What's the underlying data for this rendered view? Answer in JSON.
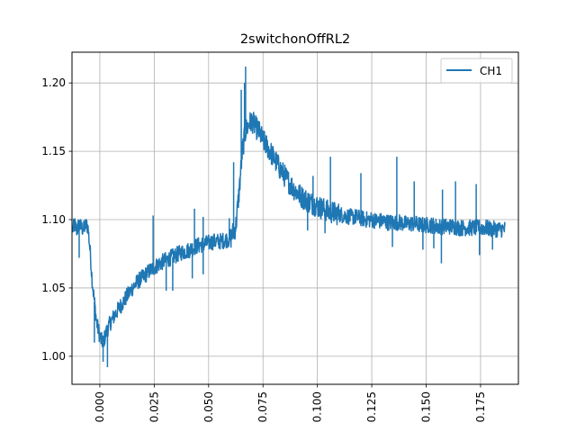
{
  "chart_data": {
    "type": "line",
    "title": "2switchonOffRL2",
    "xlabel": "",
    "ylabel": "",
    "xlim": [
      -0.0128,
      0.1924
    ],
    "ylim": [
      0.9795,
      1.2225
    ],
    "xticks": [
      0.0,
      0.025,
      0.05,
      0.075,
      0.1,
      0.125,
      0.15,
      0.175
    ],
    "xtick_labels": [
      "0.000",
      "0.025",
      "0.050",
      "0.075",
      "0.100",
      "0.125",
      "0.150",
      "0.175"
    ],
    "yticks": [
      1.0,
      1.05,
      1.1,
      1.15,
      1.2
    ],
    "ytick_labels": [
      "1.00",
      "1.05",
      "1.10",
      "1.15",
      "1.20"
    ],
    "grid": true,
    "legend": {
      "position": "top-right",
      "entries": [
        "CH1"
      ]
    },
    "color": "#1f77b4",
    "series": [
      {
        "name": "CH1",
        "x": [
          -0.0125,
          -0.0115,
          -0.0105,
          -0.0095,
          -0.0085,
          -0.0075,
          -0.0065,
          -0.0055,
          -0.0045,
          -0.0035,
          -0.0025,
          -0.0015,
          -0.0005,
          0.0005,
          0.0015,
          0.0025,
          0.0035,
          0.005,
          0.0075,
          0.01,
          0.0125,
          0.015,
          0.0175,
          0.02,
          0.0225,
          0.025,
          0.0275,
          0.03,
          0.0325,
          0.035,
          0.0375,
          0.04,
          0.0425,
          0.045,
          0.0475,
          0.05,
          0.0525,
          0.055,
          0.0575,
          0.06,
          0.0625,
          0.064,
          0.0655,
          0.067,
          0.0685,
          0.07,
          0.0715,
          0.073,
          0.075,
          0.0775,
          0.08,
          0.0825,
          0.085,
          0.0875,
          0.09,
          0.0925,
          0.095,
          0.0975,
          0.1,
          0.1025,
          0.105,
          0.1075,
          0.11,
          0.1125,
          0.115,
          0.1175,
          0.12,
          0.1225,
          0.125,
          0.1275,
          0.13,
          0.1325,
          0.135,
          0.1375,
          0.14,
          0.1425,
          0.145,
          0.1475,
          0.15,
          0.1525,
          0.155,
          0.1575,
          0.16,
          0.1625,
          0.165,
          0.1675,
          0.17,
          0.1725,
          0.175,
          0.1775,
          0.18,
          0.1825,
          0.185,
          0.1865
        ],
        "y": [
          1.093,
          1.096,
          1.092,
          1.097,
          1.094,
          1.093,
          1.096,
          1.095,
          1.078,
          1.055,
          1.04,
          1.025,
          1.018,
          1.012,
          1.01,
          1.015,
          1.02,
          1.025,
          1.032,
          1.038,
          1.044,
          1.05,
          1.055,
          1.058,
          1.062,
          1.065,
          1.068,
          1.07,
          1.072,
          1.074,
          1.076,
          1.077,
          1.079,
          1.081,
          1.082,
          1.083,
          1.084,
          1.084,
          1.085,
          1.086,
          1.095,
          1.12,
          1.15,
          1.165,
          1.17,
          1.172,
          1.168,
          1.165,
          1.158,
          1.152,
          1.145,
          1.138,
          1.132,
          1.126,
          1.121,
          1.117,
          1.114,
          1.112,
          1.11,
          1.108,
          1.106,
          1.105,
          1.104,
          1.103,
          1.102,
          1.102,
          1.101,
          1.1,
          1.1,
          1.099,
          1.099,
          1.098,
          1.098,
          1.098,
          1.097,
          1.097,
          1.097,
          1.096,
          1.096,
          1.096,
          1.095,
          1.095,
          1.095,
          1.095,
          1.094,
          1.094,
          1.094,
          1.094,
          1.094,
          1.094,
          1.093,
          1.093,
          1.093,
          1.093
        ]
      }
    ],
    "spikes": [
      {
        "x": 0.067,
        "y": 1.212
      },
      {
        "x": 0.065,
        "y": 1.195
      },
      {
        "x": 0.0665,
        "y": 1.2
      },
      {
        "x": 0.0245,
        "y": 1.103
      },
      {
        "x": 0.0435,
        "y": 1.108
      },
      {
        "x": 0.0475,
        "y": 1.102
      },
      {
        "x": 0.0595,
        "y": 1.101
      },
      {
        "x": 0.0615,
        "y": 1.142
      },
      {
        "x": 0.0475,
        "y": 1.06
      },
      {
        "x": 0.0425,
        "y": 1.057
      },
      {
        "x": 0.0305,
        "y": 1.048
      },
      {
        "x": 0.0335,
        "y": 1.048
      },
      {
        "x": 0.0035,
        "y": 0.992
      },
      {
        "x": 0.0015,
        "y": 0.996
      },
      {
        "x": -0.0025,
        "y": 1.01
      },
      {
        "x": -0.0095,
        "y": 1.072
      },
      {
        "x": 0.083,
        "y": 1.14
      },
      {
        "x": 0.098,
        "y": 1.132
      },
      {
        "x": 0.106,
        "y": 1.146
      },
      {
        "x": 0.12,
        "y": 1.134
      },
      {
        "x": 0.1365,
        "y": 1.146
      },
      {
        "x": 0.1445,
        "y": 1.128
      },
      {
        "x": 0.1575,
        "y": 1.122
      },
      {
        "x": 0.1635,
        "y": 1.128
      },
      {
        "x": 0.173,
        "y": 1.126
      },
      {
        "x": 0.1745,
        "y": 1.074
      },
      {
        "x": 0.157,
        "y": 1.068
      },
      {
        "x": 0.1485,
        "y": 1.078
      },
      {
        "x": 0.1345,
        "y": 1.08
      },
      {
        "x": 0.1535,
        "y": 1.079
      },
      {
        "x": 0.1805,
        "y": 1.078
      },
      {
        "x": 0.0955,
        "y": 1.092
      },
      {
        "x": 0.1035,
        "y": 1.09
      }
    ],
    "noise_amplitude": 0.006
  }
}
